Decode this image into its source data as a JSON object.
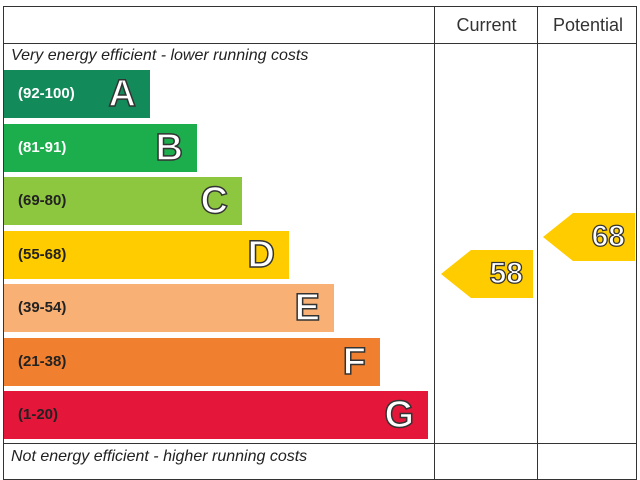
{
  "columns": {
    "current": "Current",
    "potential": "Potential"
  },
  "top_note": "Very energy efficient - lower running costs",
  "bottom_note": "Not energy efficient - higher running costs",
  "chart_data": {
    "type": "bar",
    "categories": [
      "A",
      "B",
      "C",
      "D",
      "E",
      "F",
      "G"
    ],
    "ranges": [
      "(92-100)",
      "(81-91)",
      "(69-80)",
      "(55-68)",
      "(39-54)",
      "(21-38)",
      "(1-20)"
    ],
    "colors": [
      "#138a5a",
      "#1cae4c",
      "#8dc63f",
      "#ffcc00",
      "#f8b074",
      "#f08030",
      "#e4163a"
    ],
    "range_text_colors": [
      "#ffffff",
      "#ffffff",
      "#222222",
      "#222222",
      "#222222",
      "#222222",
      "#222222"
    ],
    "current": {
      "value": 58,
      "band": "D",
      "color": "#ffcc00"
    },
    "potential": {
      "value": 68,
      "band": "D",
      "color": "#ffcc00"
    }
  }
}
